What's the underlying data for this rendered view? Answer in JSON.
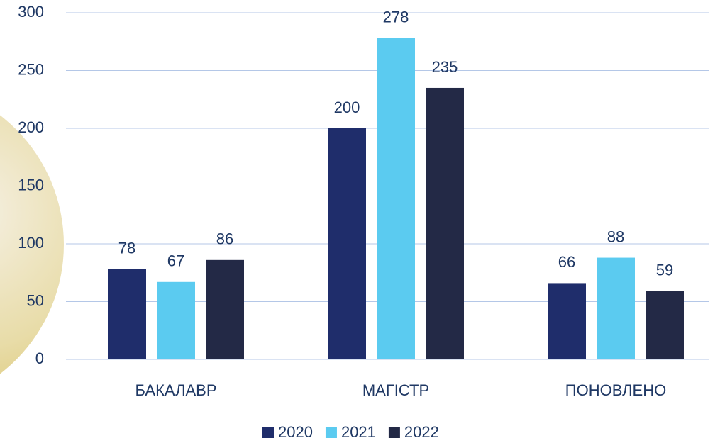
{
  "chart_data": {
    "type": "bar",
    "categories": [
      "БАКАЛАВР",
      "МАГІСТР",
      "ПОНОВЛЕНО"
    ],
    "series": [
      {
        "name": "2020",
        "color": "#1f2d6b",
        "values": [
          78,
          200,
          66
        ]
      },
      {
        "name": "2021",
        "color": "#5bcbf0",
        "values": [
          67,
          278,
          88
        ]
      },
      {
        "name": "2022",
        "color": "#232946",
        "values": [
          86,
          235,
          59
        ]
      }
    ],
    "ylim": [
      0,
      300
    ],
    "yticks": [
      0,
      50,
      100,
      150,
      200,
      250,
      300
    ],
    "grid": true,
    "legend": "bottom"
  }
}
